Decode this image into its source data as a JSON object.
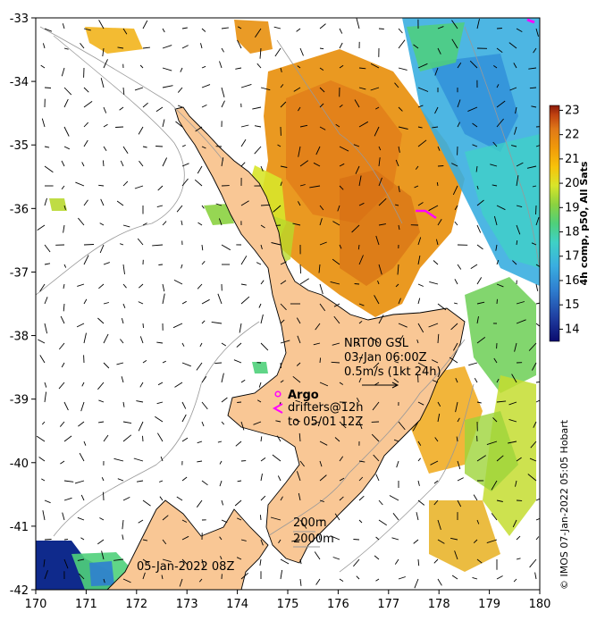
{
  "map": {
    "x_axis": {
      "min": 170,
      "max": 180,
      "ticks": [
        170,
        171,
        172,
        173,
        174,
        175,
        176,
        177,
        178,
        179,
        180
      ]
    },
    "y_axis": {
      "min": -42,
      "max": -33,
      "ticks": [
        -33,
        -34,
        -35,
        -36,
        -37,
        -38,
        -39,
        -40,
        -41,
        -42
      ]
    },
    "land_color": "#f9c795",
    "sst_colors": [
      "#0a0a6e",
      "#1f3ea0",
      "#2f7fd0",
      "#3aaee0",
      "#3fd1c5",
      "#4fd07a",
      "#8bd240",
      "#d8e52a",
      "#f7c20a",
      "#f09a0a",
      "#e07818",
      "#c04210",
      "#8a1a0a"
    ]
  },
  "colorbar": {
    "label": "4h comp, p50, All Sats",
    "min": 13.5,
    "max": 23.2,
    "ticks": [
      14,
      15,
      16,
      17,
      18,
      19,
      20,
      21,
      22,
      23
    ]
  },
  "annotations": {
    "current_source": "NRT00 GSL",
    "current_time": "03-Jan 06:00Z",
    "current_scale": "0.5m/s (1kt 24h)",
    "argo_label": "Argo",
    "drifters_line1": "drifters@12h",
    "drifters_line2": "to 05/01 12Z",
    "contour_200": "200m",
    "contour_2000": "2000m",
    "date_label": "05-Jan-2022 08Z",
    "credit": "© IMOS 07-Jan-2022 05:05 Hobart"
  }
}
